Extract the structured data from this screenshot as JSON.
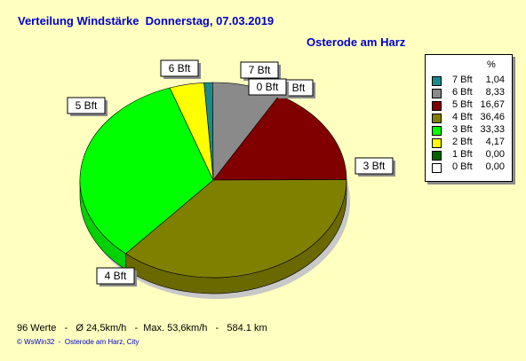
{
  "title": "Verteilung Windstärke  Donnerstag, 07.03.2019",
  "subtitle": "Osterode am Harz",
  "legend": {
    "header": "%",
    "rows": [
      {
        "label": "7 Bft",
        "value": "1,04"
      },
      {
        "label": "6 Bft",
        "value": "8,33"
      },
      {
        "label": "5 Bft",
        "value": "16,67"
      },
      {
        "label": "4 Bft",
        "value": "36,46"
      },
      {
        "label": "3 Bft",
        "value": "33,33"
      },
      {
        "label": "2 Bft",
        "value": "4,17"
      },
      {
        "label": "1 Bft",
        "value": "0,00"
      },
      {
        "label": "0 Bft",
        "value": "0,00"
      }
    ]
  },
  "stats": "96 Werte   -   Ø 24,5km/h   -  Max. 53,6km/h   -   584.1 km",
  "footer": "© WsWin32  -  Osterode am Harz, City",
  "colors": {
    "7 Bft": "#1a8a8a",
    "6 Bft": "#8a8a8a",
    "5 Bft": "#800000",
    "4 Bft": "#808000",
    "3 Bft": "#00ff00",
    "2 Bft": "#ffff00",
    "1 Bft": "#006400",
    "0 Bft": "#ffffff"
  },
  "chart_data": {
    "type": "pie",
    "title": "Verteilung Windstärke  Donnerstag, 07.03.2019",
    "subtitle": "Osterode am Harz",
    "unit": "%",
    "slices": [
      {
        "label": "7 Bft",
        "value": 1.04
      },
      {
        "label": "6 Bft",
        "value": 8.33
      },
      {
        "label": "5 Bft",
        "value": 16.67
      },
      {
        "label": "4 Bft",
        "value": 36.46
      },
      {
        "label": "3 Bft",
        "value": 33.33
      },
      {
        "label": "2 Bft",
        "value": 4.17
      },
      {
        "label": "1 Bft",
        "value": 0.0
      },
      {
        "label": "0 Bft",
        "value": 0.0
      }
    ],
    "callouts": [
      "7 Bft",
      "6 Bft",
      "5 Bft",
      "4 Bft",
      "3 Bft",
      "0 Bft",
      "1 Bft"
    ],
    "legend_position": "right"
  }
}
